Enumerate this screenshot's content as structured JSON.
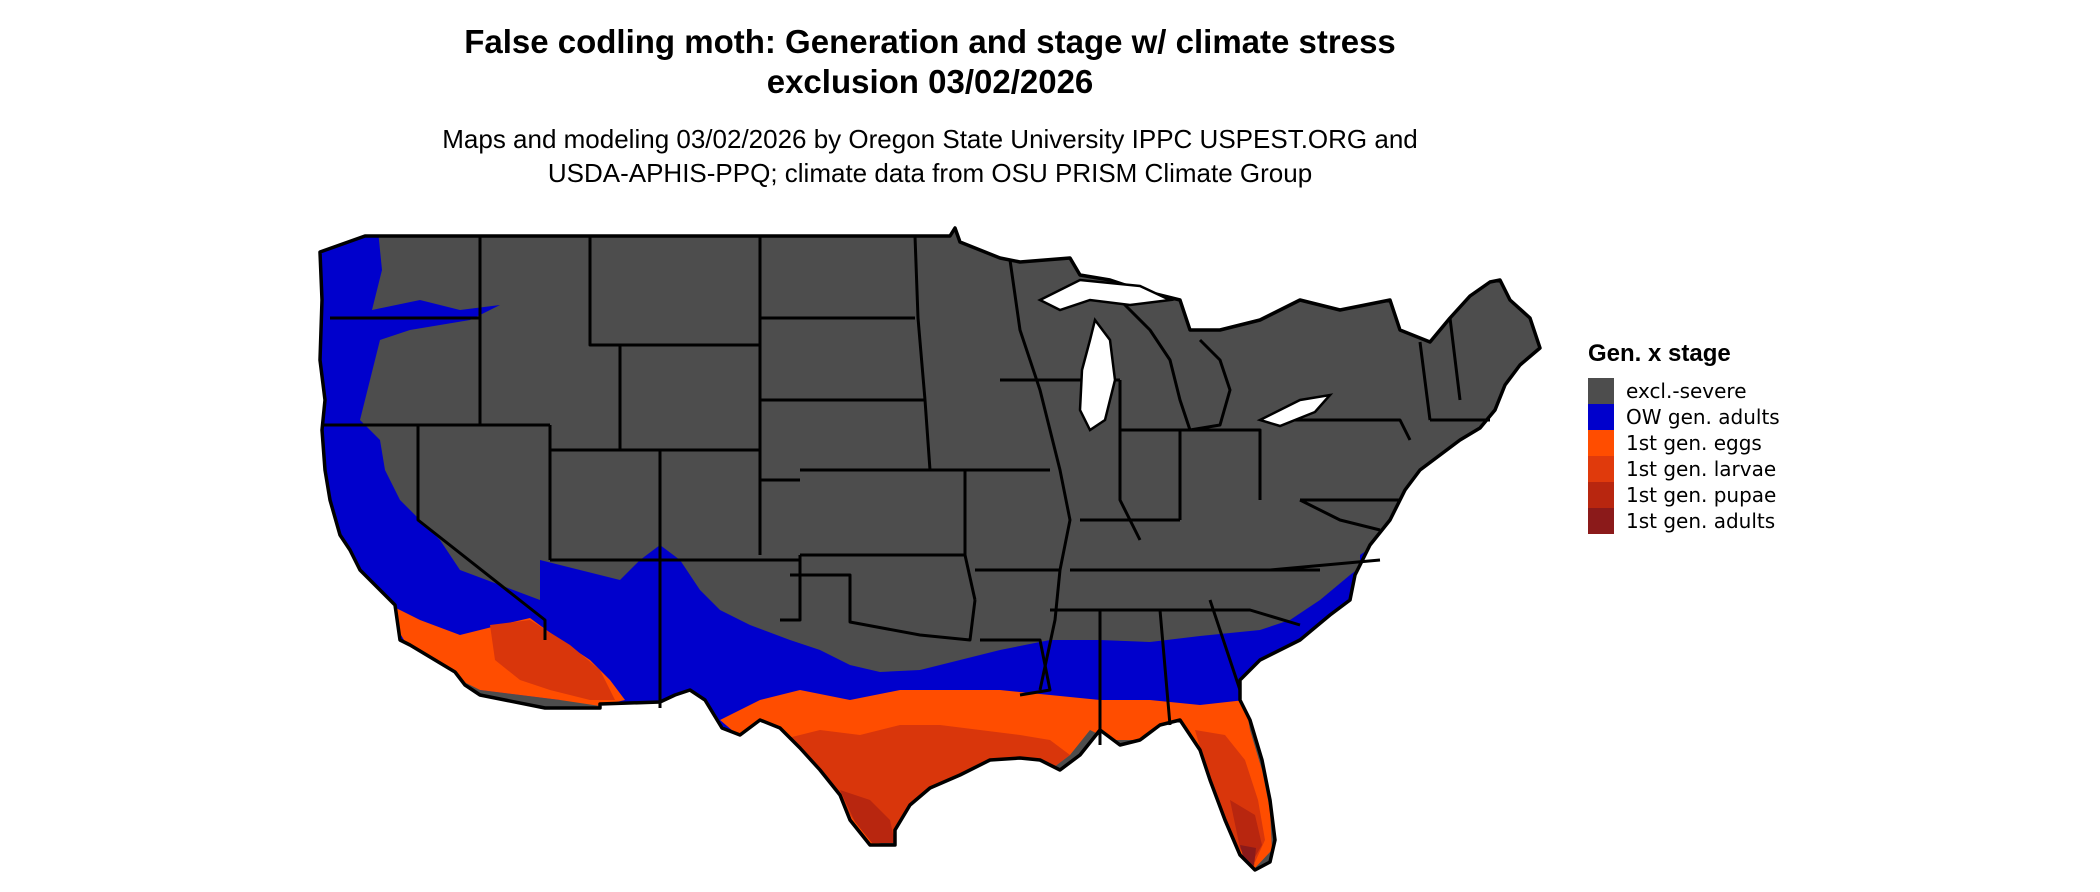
{
  "title_line1": "False codling moth: Generation and stage w/ climate stress",
  "title_line2": "exclusion 03/02/2026",
  "subtitle_line1": "Maps and modeling 03/02/2026 by Oregon State University IPPC USPEST.ORG and",
  "subtitle_line2": "USDA-APHIS-PPQ; climate data from OSU PRISM Climate Group",
  "legend": {
    "title": "Gen. x stage",
    "items": [
      {
        "label": "excl.-severe",
        "color": "#4d4d4d"
      },
      {
        "label": "OW gen. adults",
        "color": "#0000cc"
      },
      {
        "label": "1st gen. eggs",
        "color": "#ff4d00"
      },
      {
        "label": "1st gen. larvae",
        "color": "#e03a0c"
      },
      {
        "label": "1st gen. pupae",
        "color": "#b8260f"
      },
      {
        "label": "1st gen. adults",
        "color": "#8b1a1a"
      }
    ]
  }
}
